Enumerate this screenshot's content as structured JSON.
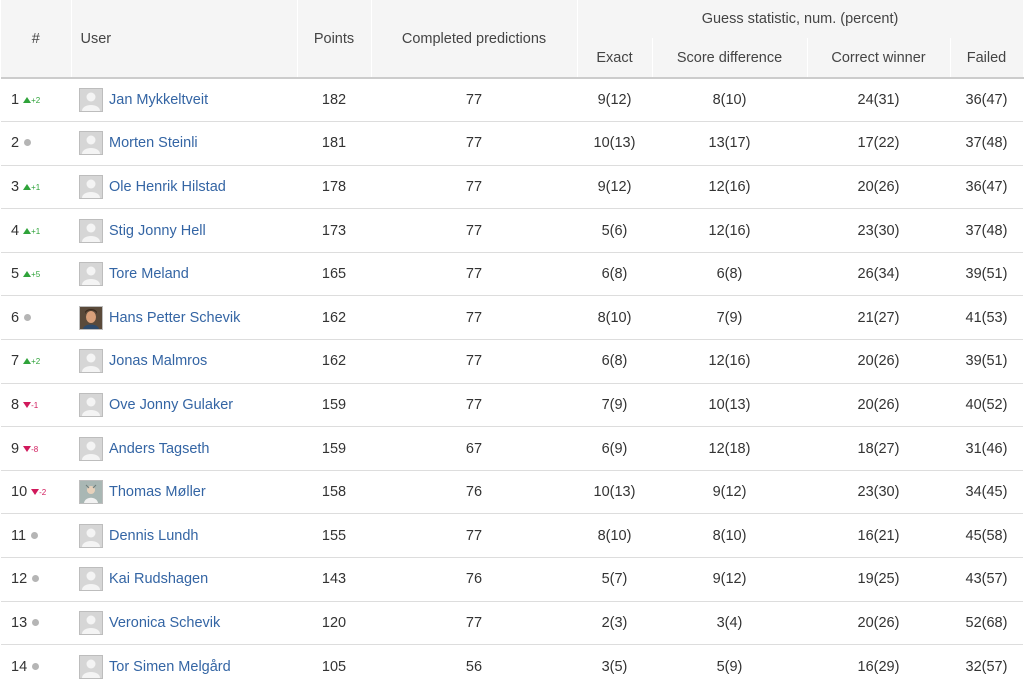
{
  "headers": {
    "rank": "#",
    "user": "User",
    "points": "Points",
    "completed": "Completed predictions",
    "group": "Guess statistic, num. (percent)",
    "exact": "Exact",
    "score_diff": "Score difference",
    "correct_winner": "Correct winner",
    "failed": "Failed"
  },
  "colors": {
    "up": "#2fa33a",
    "down": "#d0195b",
    "same": "#b5b5b5",
    "link": "#3465a4"
  },
  "rows": [
    {
      "rank": "1",
      "trend": "up",
      "delta": "+2",
      "avatar": "placeholder",
      "name": "Jan Mykkeltveit",
      "points": "182",
      "completed": "77",
      "exact": "9(12)",
      "score_diff": "8(10)",
      "correct_winner": "24(31)",
      "failed": "36(47)"
    },
    {
      "rank": "2",
      "trend": "same",
      "delta": "",
      "avatar": "placeholder",
      "name": "Morten Steinli",
      "points": "181",
      "completed": "77",
      "exact": "10(13)",
      "score_diff": "13(17)",
      "correct_winner": "17(22)",
      "failed": "37(48)"
    },
    {
      "rank": "3",
      "trend": "up",
      "delta": "+1",
      "avatar": "placeholder",
      "name": "Ole Henrik Hilstad",
      "points": "178",
      "completed": "77",
      "exact": "9(12)",
      "score_diff": "12(16)",
      "correct_winner": "20(26)",
      "failed": "36(47)"
    },
    {
      "rank": "4",
      "trend": "up",
      "delta": "+1",
      "avatar": "placeholder",
      "name": "Stig Jonny Hell",
      "points": "173",
      "completed": "77",
      "exact": "5(6)",
      "score_diff": "12(16)",
      "correct_winner": "23(30)",
      "failed": "37(48)"
    },
    {
      "rank": "5",
      "trend": "up",
      "delta": "+5",
      "avatar": "placeholder",
      "name": "Tore Meland",
      "points": "165",
      "completed": "77",
      "exact": "6(8)",
      "score_diff": "6(8)",
      "correct_winner": "26(34)",
      "failed": "39(51)"
    },
    {
      "rank": "6",
      "trend": "same",
      "delta": "",
      "avatar": "photo-a",
      "name": "Hans Petter Schevik",
      "points": "162",
      "completed": "77",
      "exact": "8(10)",
      "score_diff": "7(9)",
      "correct_winner": "21(27)",
      "failed": "41(53)"
    },
    {
      "rank": "7",
      "trend": "up",
      "delta": "+2",
      "avatar": "placeholder",
      "name": "Jonas Malmros",
      "points": "162",
      "completed": "77",
      "exact": "6(8)",
      "score_diff": "12(16)",
      "correct_winner": "20(26)",
      "failed": "39(51)"
    },
    {
      "rank": "8",
      "trend": "down",
      "delta": "-1",
      "avatar": "placeholder",
      "name": "Ove Jonny Gulaker",
      "points": "159",
      "completed": "77",
      "exact": "7(9)",
      "score_diff": "10(13)",
      "correct_winner": "20(26)",
      "failed": "40(52)"
    },
    {
      "rank": "9",
      "trend": "down",
      "delta": "-8",
      "avatar": "placeholder",
      "name": "Anders Tagseth",
      "points": "159",
      "completed": "67",
      "exact": "6(9)",
      "score_diff": "12(18)",
      "correct_winner": "18(27)",
      "failed": "31(46)"
    },
    {
      "rank": "10",
      "trend": "down",
      "delta": "-2",
      "avatar": "photo-b",
      "name": "Thomas Møller",
      "points": "158",
      "completed": "76",
      "exact": "10(13)",
      "score_diff": "9(12)",
      "correct_winner": "23(30)",
      "failed": "34(45)"
    },
    {
      "rank": "11",
      "trend": "same",
      "delta": "",
      "avatar": "placeholder",
      "name": "Dennis Lundh",
      "points": "155",
      "completed": "77",
      "exact": "8(10)",
      "score_diff": "8(10)",
      "correct_winner": "16(21)",
      "failed": "45(58)"
    },
    {
      "rank": "12",
      "trend": "same",
      "delta": "",
      "avatar": "placeholder",
      "name": "Kai Rudshagen",
      "points": "143",
      "completed": "76",
      "exact": "5(7)",
      "score_diff": "9(12)",
      "correct_winner": "19(25)",
      "failed": "43(57)"
    },
    {
      "rank": "13",
      "trend": "same",
      "delta": "",
      "avatar": "placeholder",
      "name": "Veronica Schevik",
      "points": "120",
      "completed": "77",
      "exact": "2(3)",
      "score_diff": "3(4)",
      "correct_winner": "20(26)",
      "failed": "52(68)"
    },
    {
      "rank": "14",
      "trend": "same",
      "delta": "",
      "avatar": "placeholder",
      "name": "Tor Simen Melgård",
      "points": "105",
      "completed": "56",
      "exact": "3(5)",
      "score_diff": "5(9)",
      "correct_winner": "16(29)",
      "failed": "32(57)"
    }
  ]
}
